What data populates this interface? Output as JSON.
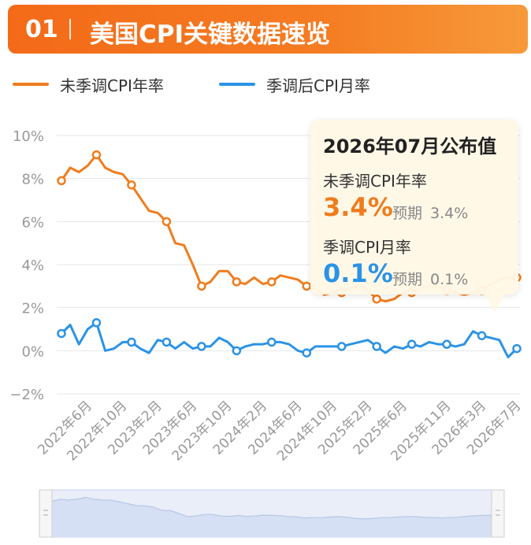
{
  "header": {
    "number": "01",
    "title": "美国CPI关键数据速览"
  },
  "colors": {
    "orange": "#f07c1e",
    "blue": "#2b93e6",
    "header_orange": "#f46a18"
  },
  "tooltip": {
    "title": "2026年07月公布值",
    "item1": {
      "label": "未季调CPI年率",
      "value": "3.4%",
      "expected_label": "预期",
      "expected_value": "3.4%"
    },
    "item2": {
      "label": "季调CPI月率",
      "value": "0.1%",
      "expected_label": "预期",
      "expected_value": "0.1%"
    }
  },
  "chart_data": {
    "type": "line",
    "y_tick_labels": [
      "10%",
      "8%",
      "6%",
      "4%",
      "2%",
      "0%",
      "−2%"
    ],
    "y_ticks": [
      10,
      8,
      6,
      4,
      2,
      0,
      -2
    ],
    "ylim": [
      -2,
      10
    ],
    "x_tick_labels": [
      "2022年6月",
      "2022年10月",
      "2023年2月",
      "2023年6月",
      "2023年10月",
      "2024年2月",
      "2024年6月",
      "2024年10月",
      "2025年2月",
      "2025年6月",
      "2025年11月",
      "2026年3月",
      "2026年7月"
    ],
    "x_tick_index": [
      3,
      7,
      11,
      15,
      19,
      23,
      27,
      31,
      35,
      39,
      44,
      48,
      52
    ],
    "series": [
      {
        "name": "未季调CPI年率",
        "color": "#f07c1e",
        "values": [
          7.9,
          8.5,
          8.3,
          8.6,
          9.1,
          8.5,
          8.3,
          8.2,
          7.7,
          7.1,
          6.5,
          6.4,
          6.0,
          5.0,
          4.9,
          4.0,
          3.0,
          3.2,
          3.7,
          3.7,
          3.2,
          3.1,
          3.4,
          3.1,
          3.2,
          3.5,
          3.4,
          3.3,
          3.0,
          2.9,
          2.6,
          2.7,
          2.7,
          2.9,
          3.0,
          2.8,
          2.4,
          2.3,
          2.4,
          2.7,
          2.7,
          2.9,
          3.0,
          3.0,
          2.8,
          2.7,
          2.6,
          2.7,
          2.8,
          3.1,
          3.3,
          3.4,
          3.4
        ]
      },
      {
        "name": "季调后CPI月率",
        "color": "#2b93e6",
        "values": [
          0.8,
          1.2,
          0.3,
          1.0,
          1.3,
          0.0,
          0.1,
          0.4,
          0.4,
          0.1,
          -0.1,
          0.5,
          0.4,
          0.1,
          0.4,
          0.1,
          0.2,
          0.2,
          0.6,
          0.4,
          0.0,
          0.2,
          0.3,
          0.3,
          0.4,
          0.4,
          0.3,
          0.0,
          -0.1,
          0.2,
          0.2,
          0.2,
          0.2,
          0.3,
          0.4,
          0.5,
          0.2,
          -0.1,
          0.2,
          0.1,
          0.3,
          0.2,
          0.4,
          0.3,
          0.3,
          0.2,
          0.3,
          0.9,
          0.7,
          0.6,
          0.5,
          -0.3,
          0.1
        ]
      }
    ],
    "markers_index": [
      0,
      4,
      8,
      12,
      16,
      20,
      24,
      28,
      32,
      36,
      40,
      44,
      48,
      52
    ],
    "legend_placement": "top-left",
    "grid": "horizontal"
  }
}
